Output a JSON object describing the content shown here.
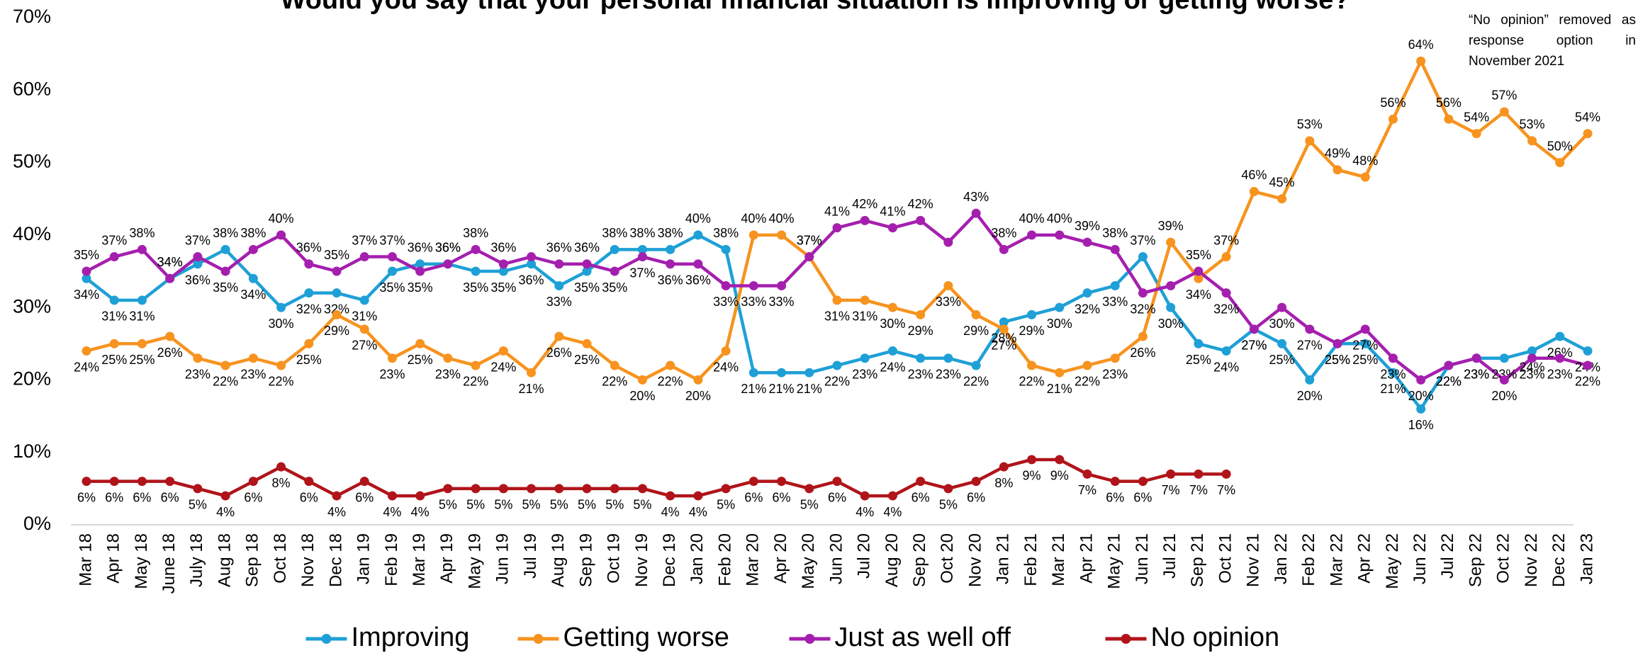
{
  "chart_data": {
    "type": "line",
    "title": "Would you say that your personal financial situation is improving or getting worse?",
    "annotation": "“No opinion” removed as response option in November 2021",
    "categories": [
      "Mar 18",
      "Apr 18",
      "May 18",
      "June 18",
      "July 18",
      "Aug 18",
      "Sep 18",
      "Oct 18",
      "Nov 18",
      "Dec 18",
      "Jan 19",
      "Feb 19",
      "Mar 19",
      "Apr 19",
      "May 19",
      "Jun 19",
      "Jul 19",
      "Aug 19",
      "Sep 19",
      "Oct 19",
      "Nov 19",
      "Dec 19",
      "Jan 20",
      "Feb 20",
      "Mar 20",
      "Apr 20",
      "May 20",
      "Jun 20",
      "Jul 20",
      "Aug 20",
      "Sep 20",
      "Oct 20",
      "Nov 20",
      "Jan 21",
      "Feb 21",
      "Mar 21",
      "Apr 21",
      "May 21",
      "Jun 21",
      "Jul 21",
      "Sep 21",
      "Oct 21",
      "Nov 21",
      "Jan 22",
      "Feb 22",
      "Mar 22",
      "Apr 22",
      "May 22",
      "Jun 22",
      "Jul 22",
      "Sep 22",
      "Oct 22",
      "Nov 22",
      "Dec 22",
      "Jan 23"
    ],
    "series": [
      {
        "name": "Improving",
        "color": "#1ea0d6",
        "values": [
          34,
          31,
          31,
          34,
          36,
          38,
          34,
          30,
          32,
          32,
          31,
          35,
          36,
          36,
          35,
          35,
          36,
          33,
          35,
          38,
          38,
          38,
          40,
          38,
          21,
          21,
          21,
          22,
          23,
          24,
          23,
          23,
          22,
          28,
          29,
          30,
          32,
          33,
          37,
          30,
          25,
          24,
          27,
          25,
          20,
          25,
          25,
          21,
          16,
          22,
          23,
          23,
          24,
          26,
          24
        ],
        "value_labels": [
          "34%",
          "31%",
          "31%",
          "34%",
          "36%",
          "38%",
          "34%",
          "30%",
          "32%",
          "32%",
          "31%",
          "35%",
          "36%",
          "36%",
          "35%",
          "35%",
          "36%",
          "33%",
          "35%",
          "38%",
          "38%",
          "38%",
          "40%",
          "38%",
          "21%",
          "21%",
          "21%",
          "22%",
          "23%",
          "24%",
          "23%",
          "23%",
          "22%",
          "28%",
          "29%",
          "30%",
          "32%",
          "33%",
          "37%",
          "30%",
          "25%",
          "24%",
          "27%",
          "25%",
          "20%",
          "25%",
          "25%",
          "21%",
          "16%",
          "22%",
          "23%",
          "23%",
          "24%",
          "26%",
          "24%"
        ]
      },
      {
        "name": "Getting worse",
        "color": "#f7931e",
        "values": [
          24,
          25,
          25,
          26,
          23,
          22,
          23,
          22,
          25,
          29,
          27,
          23,
          25,
          23,
          22,
          24,
          21,
          26,
          25,
          22,
          20,
          22,
          20,
          24,
          40,
          40,
          37,
          31,
          31,
          30,
          29,
          33,
          29,
          27,
          22,
          21,
          22,
          23,
          26,
          39,
          34,
          37,
          46,
          45,
          53,
          49,
          48,
          56,
          64,
          56,
          54,
          57,
          53,
          50,
          54
        ],
        "value_labels": [
          "24%",
          "25%",
          "25%",
          "26%",
          "23%",
          "22%",
          "23%",
          "22%",
          "25%",
          "29%",
          "27%",
          "23%",
          "25%",
          "23%",
          "22%",
          "24%",
          "21%",
          "26%",
          "25%",
          "22%",
          "20%",
          "22%",
          "20%",
          "24%",
          "40%",
          "40%",
          "37%",
          "31%",
          "31%",
          "30%",
          "29%",
          "33%",
          "29%",
          "27%",
          "22%",
          "21%",
          "22%",
          "23%",
          "26%",
          "39%",
          "34%",
          "37%",
          "46%",
          "45%",
          "53%",
          "49%",
          "48%",
          "56%",
          "64%",
          "56%",
          "54%",
          "57%",
          "53%",
          "50%",
          "54%"
        ]
      },
      {
        "name": "Just as well off",
        "color": "#a51fae",
        "values": [
          35,
          37,
          38,
          34,
          37,
          35,
          38,
          40,
          36,
          35,
          37,
          37,
          35,
          36,
          38,
          36,
          37,
          36,
          36,
          35,
          37,
          36,
          36,
          33,
          33,
          33,
          37,
          41,
          42,
          41,
          42,
          39,
          43,
          38,
          40,
          40,
          39,
          38,
          32,
          33,
          35,
          32,
          27,
          30,
          27,
          25,
          27,
          23,
          20,
          22,
          23,
          20,
          23,
          23,
          22
        ],
        "value_labels": [
          "35%",
          "37%",
          "38%",
          "34%",
          "37%",
          "35%",
          "38%",
          "40%",
          "36%",
          "35%",
          "37%",
          "37%",
          "35%",
          "36%",
          "38%",
          "36%",
          null,
          "36%",
          "36%",
          "35%",
          "37%",
          "36%",
          "36%",
          "33%",
          "33%",
          "33%",
          "37%",
          "41%",
          "42%",
          "41%",
          "42%",
          null,
          "43%",
          "38%",
          "40%",
          "40%",
          "39%",
          "38%",
          "32%",
          null,
          "35%",
          "32%",
          "27%",
          "30%",
          "27%",
          "25%",
          "27%",
          "23%",
          "20%",
          "22%",
          "23%",
          "20%",
          "23%",
          "23%",
          "22%"
        ]
      },
      {
        "name": "No opinion",
        "color": "#b0141a",
        "values": [
          6,
          6,
          6,
          6,
          5,
          4,
          6,
          8,
          6,
          4,
          6,
          4,
          4,
          5,
          5,
          5,
          5,
          5,
          5,
          5,
          5,
          4,
          4,
          5,
          6,
          6,
          5,
          6,
          4,
          4,
          6,
          5,
          6,
          8,
          9,
          9,
          7,
          6,
          6,
          7,
          7,
          7,
          null,
          null,
          null,
          null,
          null,
          null,
          null,
          null,
          null,
          null,
          null,
          null,
          null
        ],
        "value_labels": [
          "6%",
          "6%",
          "6%",
          "6%",
          "5%",
          "4%",
          "6%",
          "8%",
          "6%",
          "4%",
          "6%",
          "4%",
          "4%",
          "5%",
          "5%",
          "5%",
          "5%",
          "5%",
          "5%",
          "5%",
          "5%",
          "4%",
          "4%",
          "5%",
          "6%",
          "6%",
          "5%",
          "6%",
          "4%",
          "4%",
          "6%",
          "5%",
          "6%",
          "8%",
          "9%",
          "9%",
          "7%",
          "6%",
          "6%",
          "7%",
          "7%",
          "7%",
          null,
          null,
          null,
          null,
          null,
          null,
          null,
          null,
          null,
          null,
          null,
          null,
          null
        ]
      }
    ],
    "ylim": [
      0,
      70
    ],
    "yticks": [
      {
        "value": 0,
        "label": "0%"
      },
      {
        "value": 10,
        "label": "10%"
      },
      {
        "value": 20,
        "label": "20%"
      },
      {
        "value": 30,
        "label": "30%"
      },
      {
        "value": 40,
        "label": "40%"
      },
      {
        "value": 50,
        "label": "50%"
      },
      {
        "value": 60,
        "label": "60%"
      },
      {
        "value": 70,
        "label": "70%"
      }
    ],
    "grid": false,
    "legend": "bottom"
  }
}
